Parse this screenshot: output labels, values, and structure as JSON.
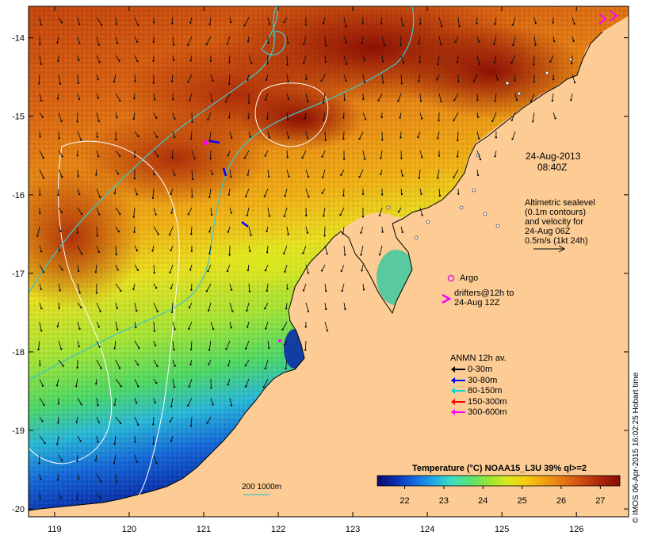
{
  "map": {
    "x_ticks": [
      "119",
      "120",
      "121",
      "122",
      "123",
      "124",
      "125",
      "126"
    ],
    "y_ticks": [
      "-14",
      "-15",
      "-16",
      "-17",
      "-18",
      "-19",
      "-20"
    ],
    "lon_range": [
      118.65,
      126.7
    ],
    "lat_range": [
      -20.1,
      -13.6
    ]
  },
  "annotations": {
    "date": "24-Aug-2013",
    "time": "08:40Z",
    "altimetry": [
      "Altimetric sealevel",
      "(0.1m contours)",
      "and velocity for",
      "24-Aug 06Z",
      "0.5m/s (1kt 24h)"
    ],
    "argo": "Argo",
    "drifters": [
      "drifters@12h to",
      "24-Aug 12Z"
    ],
    "anmn_title": "ANMN 12h av.",
    "anmn_items": [
      {
        "label": "0-30m",
        "color": "#000000"
      },
      {
        "label": "30-80m",
        "color": "#0000ff"
      },
      {
        "label": "80-150m",
        "color": "#00d8d8"
      },
      {
        "label": "150-300m",
        "color": "#ff0000"
      },
      {
        "label": "300-600m",
        "color": "#ff00ff"
      }
    ],
    "isobath_label": "200  1000m",
    "side_credit": "© IMOS 06-Apr-2015 16:02:25 Hobart time"
  },
  "colorbar": {
    "title": "Temperature (°C) NOAA15_L3U 39% ql>=2",
    "ticks": [
      "22",
      "23",
      "24",
      "25",
      "26",
      "27"
    ],
    "colors": [
      "#08086b",
      "#0a2fb0",
      "#1668e0",
      "#20a8e8",
      "#3ce0c0",
      "#5ae070",
      "#9ae630",
      "#dce81c",
      "#f5cc10",
      "#f0a010",
      "#e67414",
      "#cc4a10",
      "#a82408",
      "#8a0c04"
    ]
  },
  "colors": {
    "land": "#fccc94",
    "isobath_200": "#40c4c4",
    "isobath_1000": "#40c4c4",
    "contour": "#ffffff",
    "argo": "#e020e0",
    "drifter": "#ff00ff"
  }
}
